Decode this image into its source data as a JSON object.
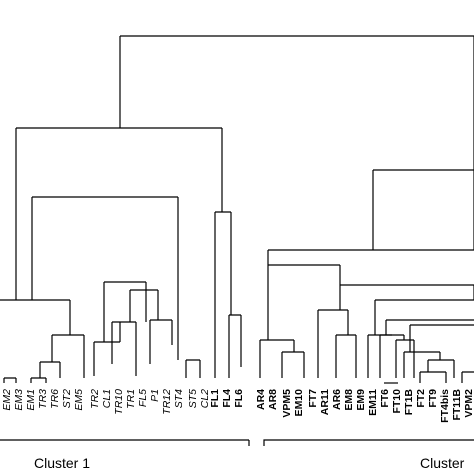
{
  "clusters": [
    {
      "label": "Cluster 1"
    },
    {
      "label": "Cluster"
    }
  ],
  "leaves": {
    "cluster1": [
      "EM2",
      "EM3",
      "EM1",
      "TR3",
      "TR6",
      "ST2",
      "EM5",
      "TR2",
      "CL1",
      "TR10",
      "TR1",
      "FL5",
      "P1",
      "TR12",
      "ST4",
      "ST5",
      "CL2",
      "FL1",
      "FL4",
      "FL6"
    ],
    "cluster2": [
      "AR4",
      "AR8",
      "VPM5",
      "EM10",
      "FT7",
      "AR11",
      "AR6",
      "EM8",
      "EM9",
      "EM11",
      "FT6",
      "FT10",
      "FT1B",
      "FT2",
      "FT9",
      "FT4bis",
      "FT11B",
      "VPM2"
    ]
  }
}
